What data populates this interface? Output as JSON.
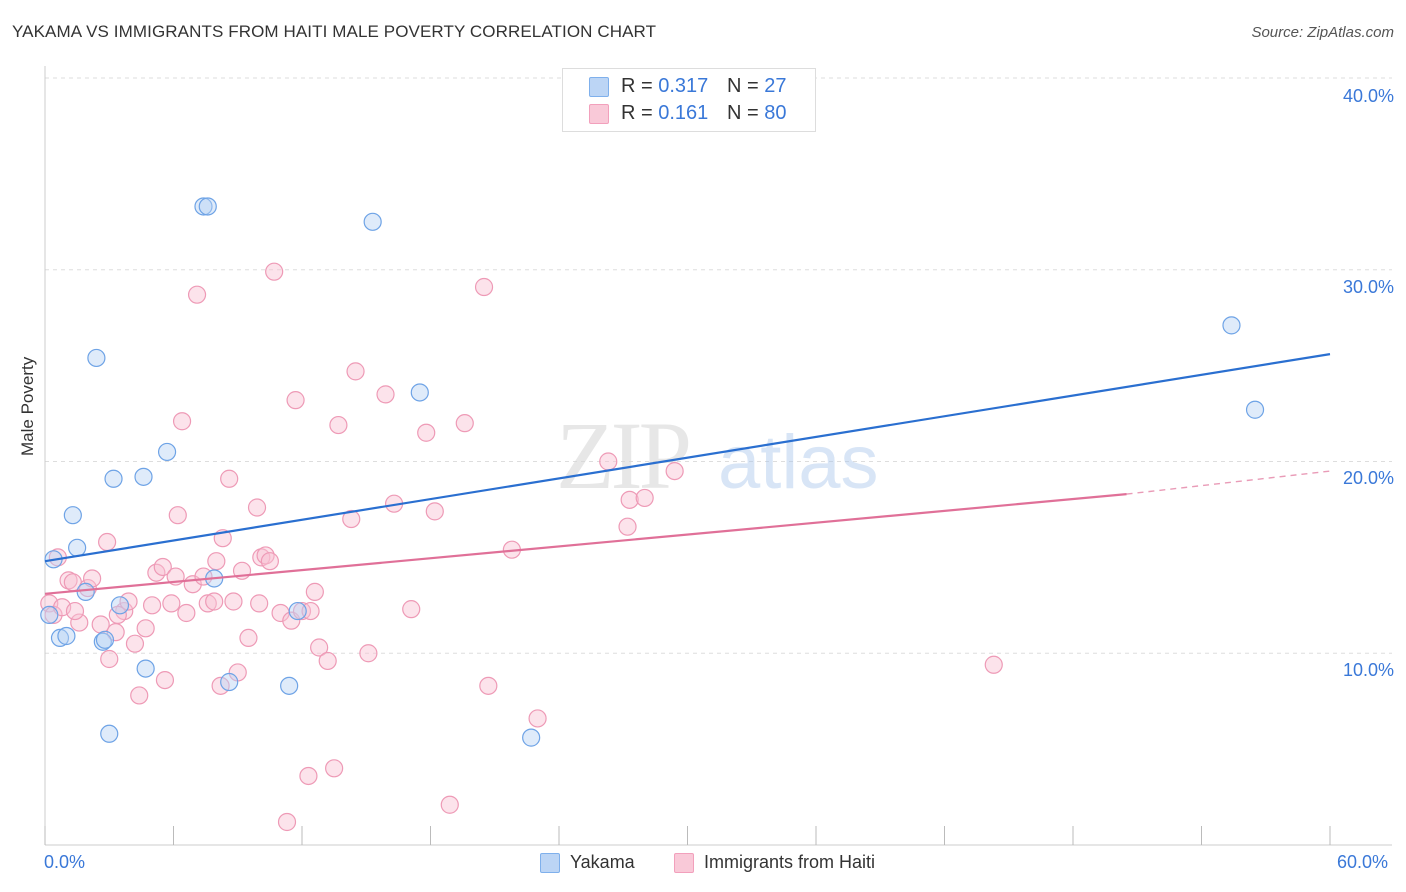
{
  "title": "YAKAMA VS IMMIGRANTS FROM HAITI MALE POVERTY CORRELATION CHART",
  "source": "Source: ZipAtlas.com",
  "watermark": "ZIPatlas",
  "legend_top": {
    "rows": [
      {
        "r_label": "R =",
        "r_value": "0.317",
        "n_label": "N =",
        "n_value": "27",
        "color": "#7fb0ec"
      },
      {
        "r_label": "R =",
        "r_value": "0.161",
        "n_label": "N =",
        "n_value": "80",
        "color": "#f2a0bc"
      }
    ]
  },
  "legend_bottom": [
    {
      "label": "Yakama",
      "color": "#7fb0ec"
    },
    {
      "label": "Immigrants from Haiti",
      "color": "#f2a0bc"
    }
  ],
  "chart_data": {
    "type": "scatter",
    "title": "YAKAMA VS IMMIGRANTS FROM HAITI MALE POVERTY CORRELATION CHART",
    "xlabel": "",
    "ylabel": "Male Poverty",
    "xlim": [
      0,
      60
    ],
    "ylim": [
      0,
      40
    ],
    "x_tick_labels": [
      "0.0%",
      "60.0%"
    ],
    "y_tick_labels": [
      "10.0%",
      "20.0%",
      "30.0%",
      "40.0%"
    ],
    "y_ticks": [
      10,
      20,
      30,
      40
    ],
    "grid": "horizontal dashed",
    "legend": "top-center",
    "series": [
      {
        "name": "Yakama",
        "color": "#7fb0ec",
        "line_color": "#2a6fd0",
        "trend": {
          "x0": 0,
          "y0": 14.8,
          "x1": 60,
          "y1": 25.6
        },
        "points": [
          [
            0.4,
            14.9
          ],
          [
            0.7,
            10.8
          ],
          [
            1.0,
            10.9
          ],
          [
            1.3,
            17.2
          ],
          [
            1.5,
            15.5
          ],
          [
            1.9,
            13.2
          ],
          [
            2.4,
            25.4
          ],
          [
            2.7,
            10.6
          ],
          [
            3.0,
            5.8
          ],
          [
            3.2,
            19.1
          ],
          [
            3.5,
            12.5
          ],
          [
            4.6,
            19.2
          ],
          [
            4.7,
            9.2
          ],
          [
            5.7,
            20.5
          ],
          [
            7.4,
            33.3
          ],
          [
            7.6,
            33.3
          ],
          [
            7.9,
            13.9
          ],
          [
            8.6,
            8.5
          ],
          [
            11.4,
            8.3
          ],
          [
            11.8,
            12.2
          ],
          [
            15.3,
            32.5
          ],
          [
            17.5,
            23.6
          ],
          [
            22.7,
            5.6
          ],
          [
            55.4,
            27.1
          ],
          [
            56.5,
            22.7
          ],
          [
            0.2,
            12.0
          ],
          [
            2.8,
            10.7
          ]
        ]
      },
      {
        "name": "Immigrants from Haiti",
        "color": "#f2a0bc",
        "line_color": "#e07098",
        "trend": {
          "x0": 0,
          "y0": 13.1,
          "x1": 50.5,
          "y1": 18.3
        },
        "trend_dashed": {
          "x0": 50.5,
          "y0": 18.3,
          "x1": 60,
          "y1": 19.5
        },
        "points": [
          [
            0.2,
            12.6
          ],
          [
            0.4,
            12.0
          ],
          [
            0.8,
            12.4
          ],
          [
            1.1,
            13.8
          ],
          [
            1.3,
            13.7
          ],
          [
            1.6,
            11.6
          ],
          [
            2.0,
            13.4
          ],
          [
            2.2,
            13.9
          ],
          [
            2.6,
            11.5
          ],
          [
            3.0,
            9.7
          ],
          [
            3.3,
            11.1
          ],
          [
            3.7,
            12.2
          ],
          [
            3.9,
            12.7
          ],
          [
            4.2,
            10.5
          ],
          [
            4.4,
            7.8
          ],
          [
            4.7,
            11.3
          ],
          [
            5.0,
            12.5
          ],
          [
            5.2,
            14.2
          ],
          [
            5.5,
            14.5
          ],
          [
            5.6,
            8.6
          ],
          [
            5.9,
            12.6
          ],
          [
            6.1,
            14.0
          ],
          [
            6.2,
            17.2
          ],
          [
            6.4,
            22.1
          ],
          [
            6.6,
            12.1
          ],
          [
            6.9,
            13.6
          ],
          [
            7.1,
            28.7
          ],
          [
            7.4,
            14.0
          ],
          [
            7.6,
            12.6
          ],
          [
            7.9,
            12.7
          ],
          [
            8.0,
            14.8
          ],
          [
            8.2,
            8.3
          ],
          [
            8.3,
            16.0
          ],
          [
            8.6,
            19.1
          ],
          [
            8.8,
            12.7
          ],
          [
            9.0,
            9.0
          ],
          [
            9.2,
            14.3
          ],
          [
            9.5,
            10.8
          ],
          [
            9.9,
            17.6
          ],
          [
            10.1,
            15.0
          ],
          [
            10.3,
            15.1
          ],
          [
            10.5,
            14.8
          ],
          [
            10.7,
            29.9
          ],
          [
            11.0,
            12.1
          ],
          [
            11.3,
            1.2
          ],
          [
            11.5,
            11.7
          ],
          [
            11.7,
            23.2
          ],
          [
            12.0,
            12.2
          ],
          [
            12.3,
            3.6
          ],
          [
            12.6,
            13.2
          ],
          [
            12.8,
            10.3
          ],
          [
            13.2,
            9.6
          ],
          [
            13.5,
            4.0
          ],
          [
            13.7,
            21.9
          ],
          [
            14.3,
            17.0
          ],
          [
            14.5,
            24.7
          ],
          [
            15.1,
            10.0
          ],
          [
            15.9,
            23.5
          ],
          [
            16.3,
            17.8
          ],
          [
            17.1,
            12.3
          ],
          [
            17.8,
            21.5
          ],
          [
            18.2,
            17.4
          ],
          [
            18.9,
            2.1
          ],
          [
            19.6,
            22.0
          ],
          [
            20.5,
            29.1
          ],
          [
            20.7,
            8.3
          ],
          [
            21.8,
            15.4
          ],
          [
            23.0,
            6.6
          ],
          [
            26.3,
            20.0
          ],
          [
            27.2,
            16.6
          ],
          [
            27.3,
            18.0
          ],
          [
            28.0,
            18.1
          ],
          [
            29.4,
            19.5
          ],
          [
            44.3,
            9.4
          ],
          [
            0.6,
            15.0
          ],
          [
            1.4,
            12.2
          ],
          [
            2.9,
            15.8
          ],
          [
            3.4,
            12.0
          ],
          [
            10.0,
            12.6
          ],
          [
            12.4,
            12.2
          ]
        ]
      }
    ]
  }
}
